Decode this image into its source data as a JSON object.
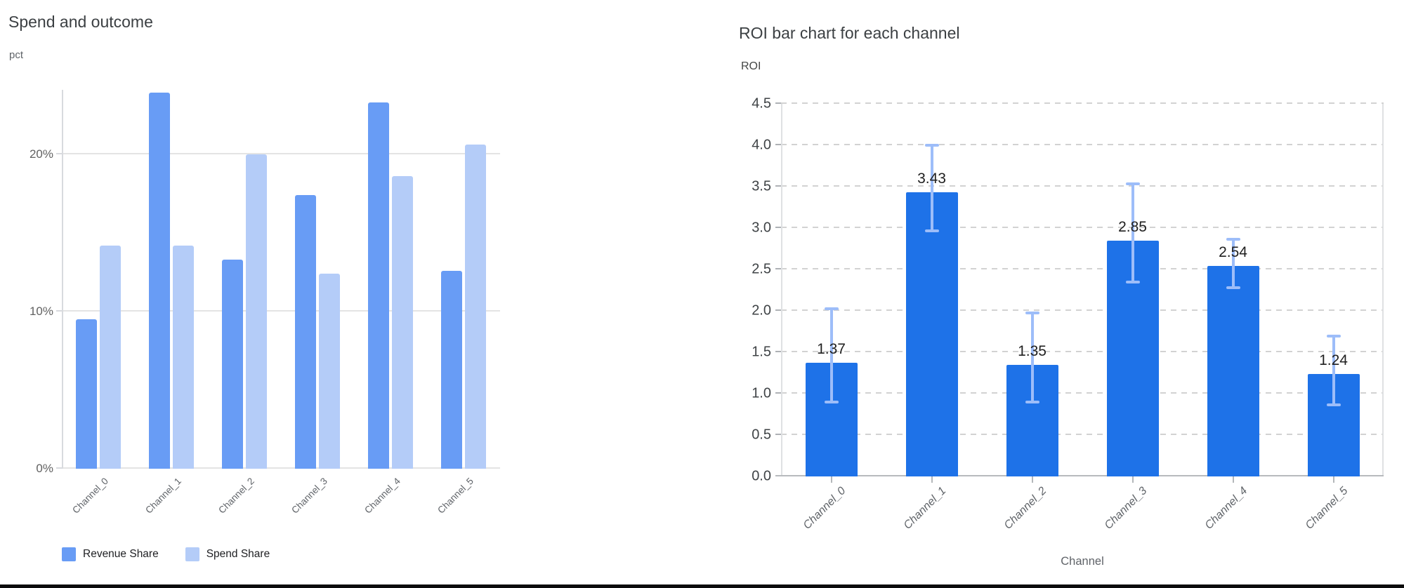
{
  "chart_data": [
    {
      "type": "bar",
      "title": "Spend and outcome",
      "ylabel": "pct",
      "categories": [
        "Channel_0",
        "Channel_1",
        "Channel_2",
        "Channel_3",
        "Channel_4",
        "Channel_5"
      ],
      "series": [
        {
          "name": "Revenue Share",
          "color": "#689cf5",
          "values": [
            9.5,
            23.9,
            13.3,
            17.4,
            23.3,
            12.6
          ]
        },
        {
          "name": "Spend Share",
          "color": "#b4ccf8",
          "values": [
            14.2,
            14.2,
            20.0,
            12.4,
            18.6,
            20.6
          ]
        }
      ],
      "y_ticks": [
        {
          "value": 0,
          "label": "0%"
        },
        {
          "value": 10,
          "label": "10%"
        },
        {
          "value": 20,
          "label": "20%"
        }
      ],
      "ylim": [
        0,
        24.1
      ],
      "unit": "percent",
      "grid": "solid-horizontal",
      "legend_position": "bottom-left"
    },
    {
      "type": "bar",
      "title": "ROI bar chart for each channel",
      "ylabel": "ROI",
      "xlabel": "Channel",
      "categories": [
        "Channel_0",
        "Channel_1",
        "Channel_2",
        "Channel_3",
        "Channel_4",
        "Channel_5"
      ],
      "values": [
        1.37,
        3.43,
        1.35,
        2.85,
        2.54,
        1.24
      ],
      "data_labels": [
        "1.37",
        "3.43",
        "1.35",
        "2.85",
        "2.54",
        "1.24"
      ],
      "error_low": [
        0.88,
        2.95,
        0.88,
        2.33,
        2.26,
        0.85
      ],
      "error_high": [
        2.04,
        4.02,
        1.99,
        3.55,
        2.88,
        1.71
      ],
      "ylim": [
        0,
        4.5
      ],
      "y_tick_step": 0.5,
      "bar_color": "#1e72e8",
      "error_color": "#9dbdf9",
      "grid": "dashed-horizontal",
      "legend_position": "none"
    }
  ]
}
